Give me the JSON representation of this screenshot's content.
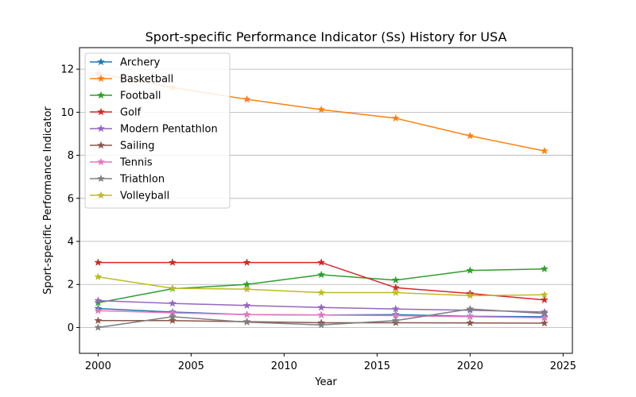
{
  "chart_data": {
    "type": "line",
    "title": "Sport-specific Performance Indicator (Ss) History for USA",
    "xlabel": "Year",
    "ylabel": "Sport-specific Performance Indicator",
    "xlim": [
      1999,
      2025.5
    ],
    "ylim": [
      -1.2,
      13.0
    ],
    "xticks": [
      2000,
      2005,
      2010,
      2015,
      2020,
      2025
    ],
    "yticks": [
      0,
      2,
      4,
      6,
      8,
      10,
      12
    ],
    "grid": "y",
    "legend_position": "top-left",
    "marker": "star",
    "x": [
      2000,
      2004,
      2008,
      2012,
      2016,
      2020,
      2024
    ],
    "series": [
      {
        "name": "Archery",
        "color": "#1f77b4",
        "values": [
          0.88,
          0.72,
          0.6,
          0.58,
          0.6,
          0.52,
          0.5
        ]
      },
      {
        "name": "Basketball",
        "color": "#ff7f0e",
        "values": [
          11.8,
          11.15,
          10.6,
          10.12,
          9.72,
          8.9,
          8.2
        ]
      },
      {
        "name": "Football",
        "color": "#2ca02c",
        "values": [
          1.15,
          1.8,
          2.0,
          2.45,
          2.2,
          2.65,
          2.72
        ]
      },
      {
        "name": "Golf",
        "color": "#d62728",
        "values": [
          3.02,
          3.02,
          3.02,
          3.02,
          1.85,
          1.58,
          1.28
        ]
      },
      {
        "name": "Modern Pentathlon",
        "color": "#9467bd",
        "values": [
          1.25,
          1.12,
          1.02,
          0.93,
          0.86,
          0.8,
          0.72
        ]
      },
      {
        "name": "Sailing",
        "color": "#8c564b",
        "values": [
          0.32,
          0.32,
          0.27,
          0.22,
          0.22,
          0.21,
          0.2
        ]
      },
      {
        "name": "Tennis",
        "color": "#e377c2",
        "values": [
          0.78,
          0.68,
          0.6,
          0.58,
          0.55,
          0.5,
          0.45
        ]
      },
      {
        "name": "Triathlon",
        "color": "#7f7f7f",
        "values": [
          0.0,
          0.5,
          0.25,
          0.12,
          0.32,
          0.86,
          0.65
        ]
      },
      {
        "name": "Volleyball",
        "color": "#bcbd22",
        "values": [
          2.35,
          1.82,
          1.78,
          1.62,
          1.62,
          1.48,
          1.52
        ]
      }
    ]
  }
}
